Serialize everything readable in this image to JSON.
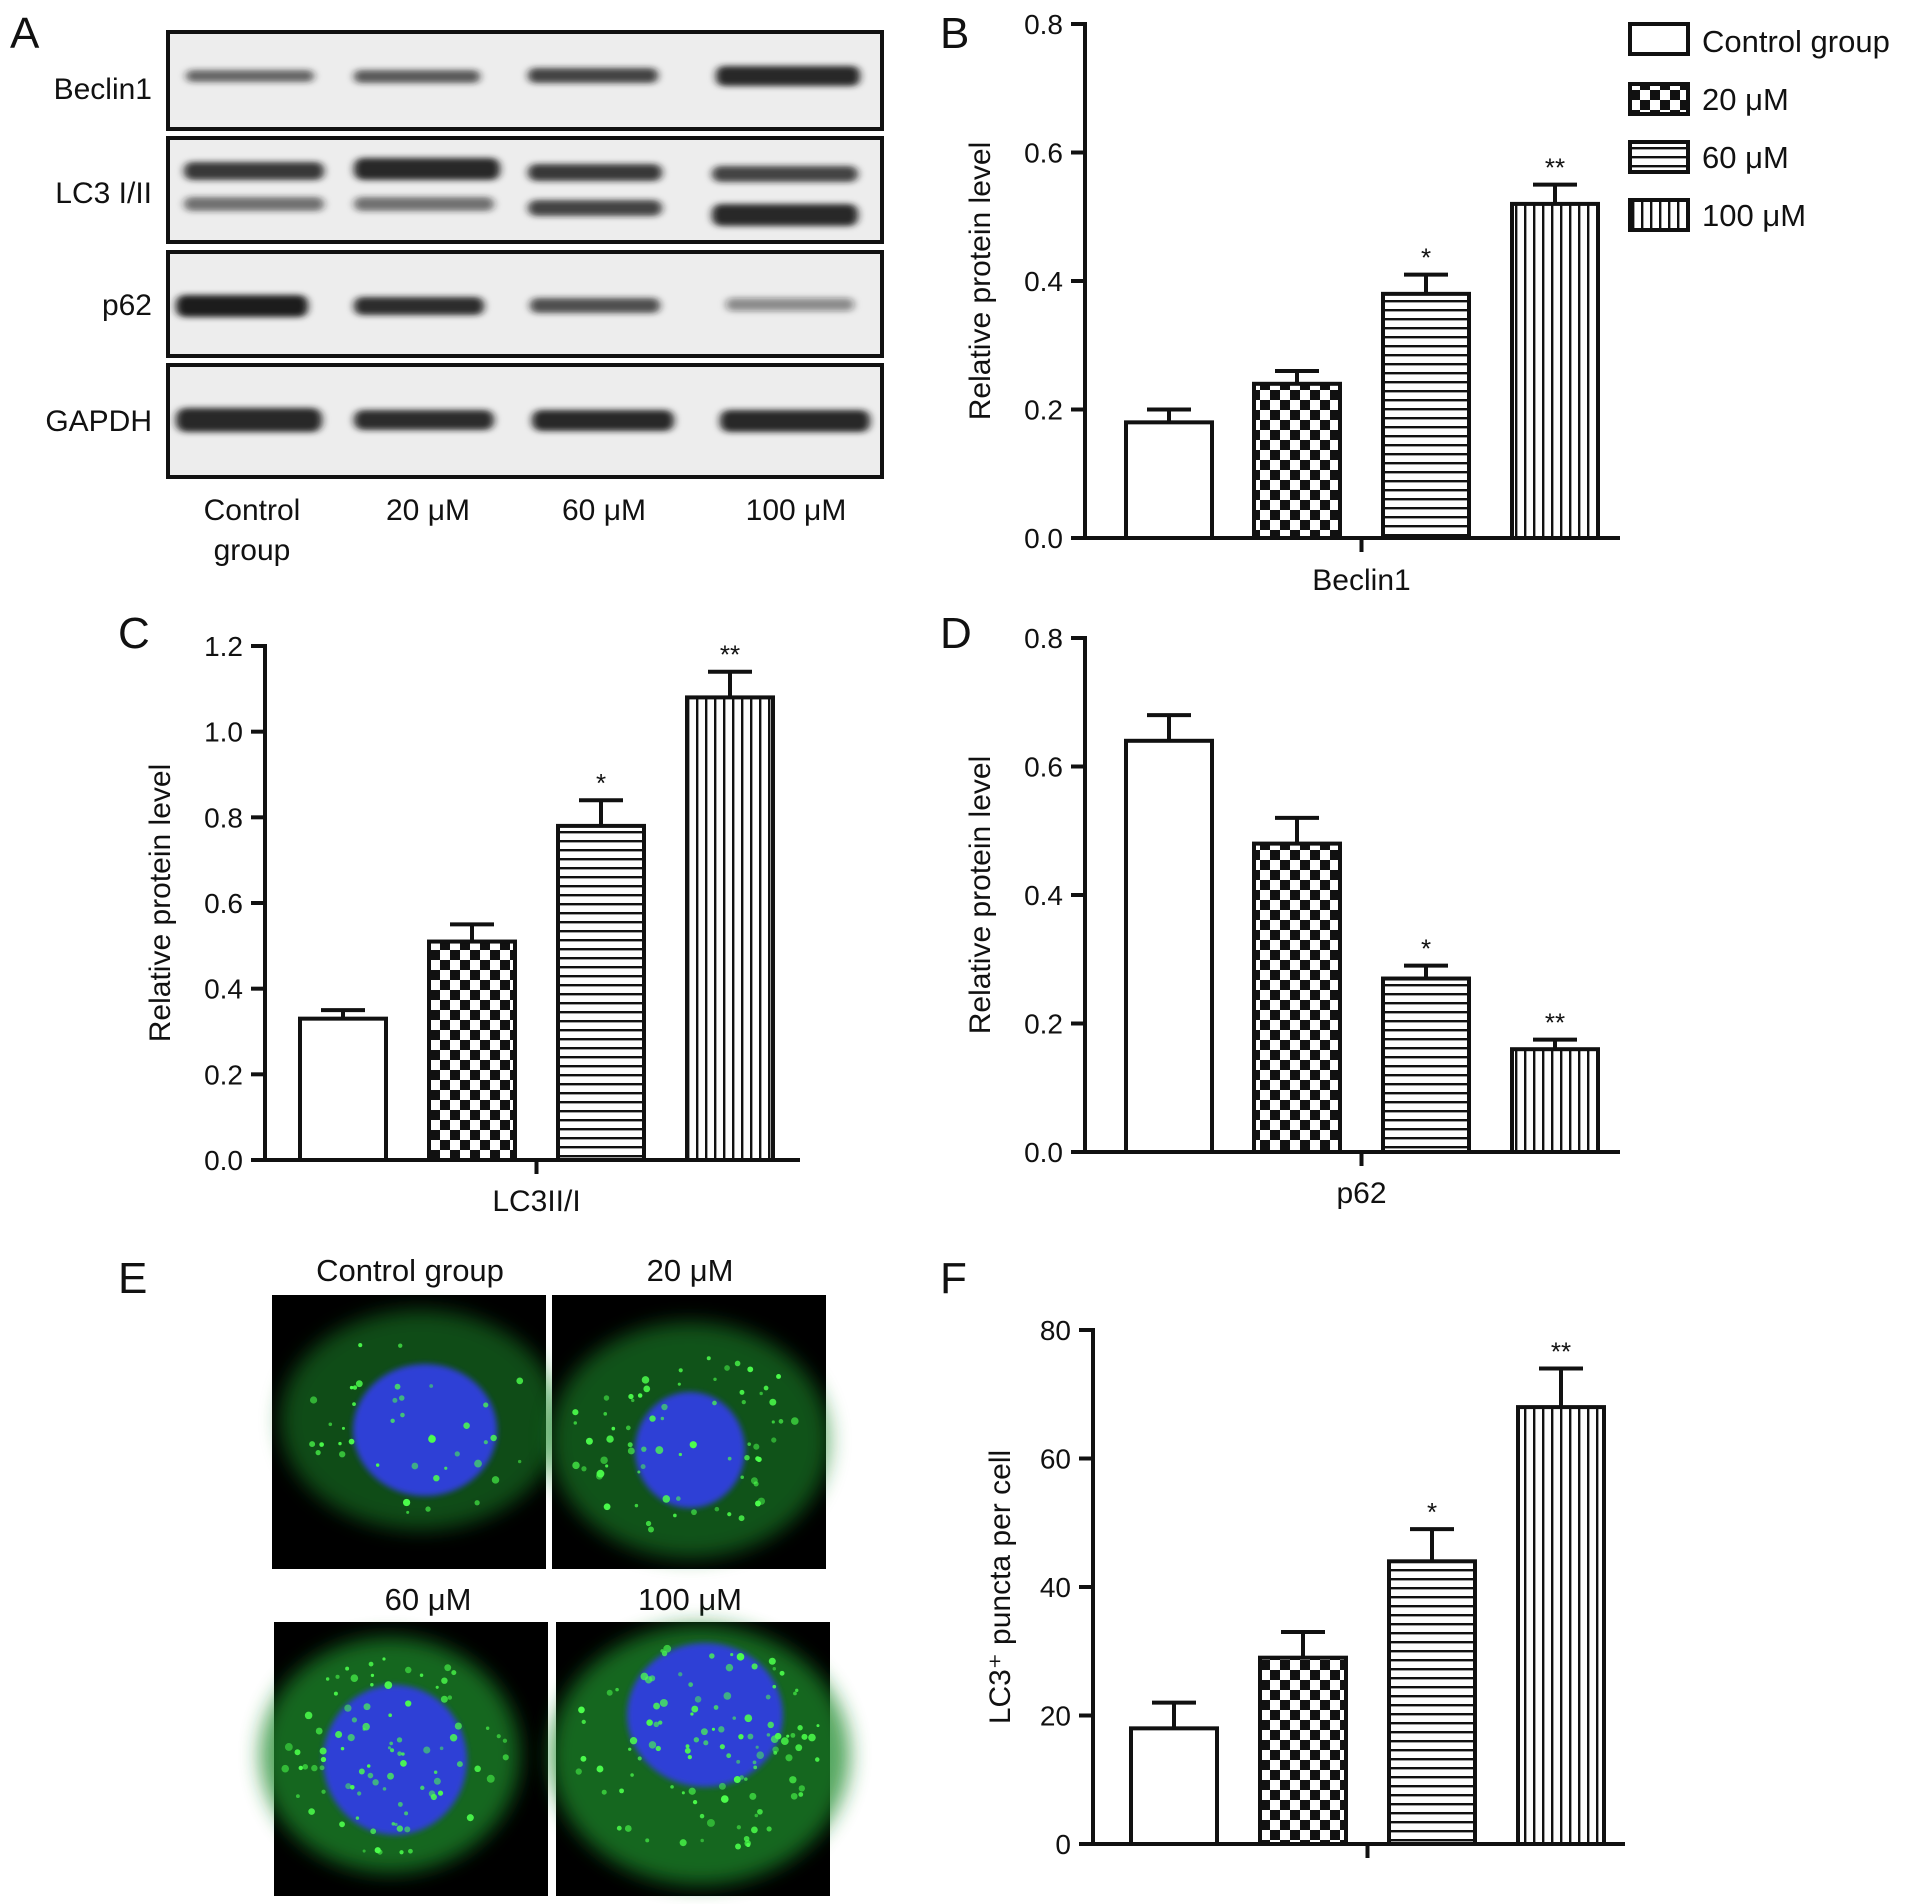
{
  "legend": [
    "Control group",
    "20 μM",
    "60 μM",
    "100 μM"
  ],
  "panels": {
    "a": {
      "letter": "A",
      "rows": [
        "Beclin1",
        "LC3 I/II",
        "p62",
        "GAPDH"
      ],
      "lanes": [
        "Control group",
        "20 μM",
        "60 μM",
        "100 μM"
      ]
    },
    "b": {
      "letter": "B"
    },
    "c": {
      "letter": "C"
    },
    "d": {
      "letter": "D"
    },
    "e": {
      "letter": "E",
      "titles": [
        "Control group",
        "20 μM",
        "60 μM",
        "100 μM"
      ]
    },
    "f": {
      "letter": "F"
    }
  },
  "colors": {
    "ink": "#111111",
    "nucleus": "#2f3fd6",
    "cytoplasm": "#1f8a2a",
    "puncta": "#4cff4c",
    "blot_bg": "#ededed",
    "band": "#1a1a1a"
  },
  "chart_data": [
    {
      "id": "B",
      "type": "bar",
      "category": "Beclin1",
      "ylabel": "Relative protein level",
      "ylim": [
        0,
        0.8
      ],
      "yticks": [
        "0.0",
        "0.2",
        "0.4",
        "0.6",
        "0.8"
      ],
      "series": [
        {
          "name": "Control group",
          "pattern": "none",
          "value": 0.18,
          "error": 0.02,
          "sig": ""
        },
        {
          "name": "20 μM",
          "pattern": "checker",
          "value": 0.24,
          "error": 0.02,
          "sig": ""
        },
        {
          "name": "60 μM",
          "pattern": "horizontal",
          "value": 0.38,
          "error": 0.03,
          "sig": "*"
        },
        {
          "name": "100 μM",
          "pattern": "vertical",
          "value": 0.52,
          "error": 0.03,
          "sig": "**"
        }
      ]
    },
    {
      "id": "C",
      "type": "bar",
      "category": "LC3II/I",
      "ylabel": "Relative protein level",
      "ylim": [
        0,
        1.2
      ],
      "yticks": [
        "0.0",
        "0.2",
        "0.4",
        "0.6",
        "0.8",
        "1.0",
        "1.2"
      ],
      "series": [
        {
          "name": "Control group",
          "pattern": "none",
          "value": 0.33,
          "error": 0.02,
          "sig": ""
        },
        {
          "name": "20 μM",
          "pattern": "checker",
          "value": 0.51,
          "error": 0.04,
          "sig": ""
        },
        {
          "name": "60 μM",
          "pattern": "horizontal",
          "value": 0.78,
          "error": 0.06,
          "sig": "*"
        },
        {
          "name": "100 μM",
          "pattern": "vertical",
          "value": 1.08,
          "error": 0.06,
          "sig": "**"
        }
      ]
    },
    {
      "id": "D",
      "type": "bar",
      "category": "p62",
      "ylabel": "Relative protein level",
      "ylim": [
        0,
        0.8
      ],
      "yticks": [
        "0.0",
        "0.2",
        "0.4",
        "0.6",
        "0.8"
      ],
      "series": [
        {
          "name": "Control group",
          "pattern": "none",
          "value": 0.64,
          "error": 0.04,
          "sig": ""
        },
        {
          "name": "20 μM",
          "pattern": "checker",
          "value": 0.48,
          "error": 0.04,
          "sig": ""
        },
        {
          "name": "60 μM",
          "pattern": "horizontal",
          "value": 0.27,
          "error": 0.02,
          "sig": "*"
        },
        {
          "name": "100 μM",
          "pattern": "vertical",
          "value": 0.16,
          "error": 0.015,
          "sig": "**"
        }
      ]
    },
    {
      "id": "F",
      "type": "bar",
      "category": "",
      "ylabel": "LC3⁺ puncta per cell",
      "ylim": [
        0,
        80
      ],
      "yticks": [
        "0",
        "20",
        "40",
        "60",
        "80"
      ],
      "series": [
        {
          "name": "Control group",
          "pattern": "none",
          "value": 18,
          "error": 4,
          "sig": ""
        },
        {
          "name": "20 μM",
          "pattern": "checker",
          "value": 29,
          "error": 4,
          "sig": ""
        },
        {
          "name": "60 μM",
          "pattern": "horizontal",
          "value": 44,
          "error": 5,
          "sig": "*"
        },
        {
          "name": "100 μM",
          "pattern": "vertical",
          "value": 68,
          "error": 6,
          "sig": "**"
        }
      ]
    }
  ]
}
